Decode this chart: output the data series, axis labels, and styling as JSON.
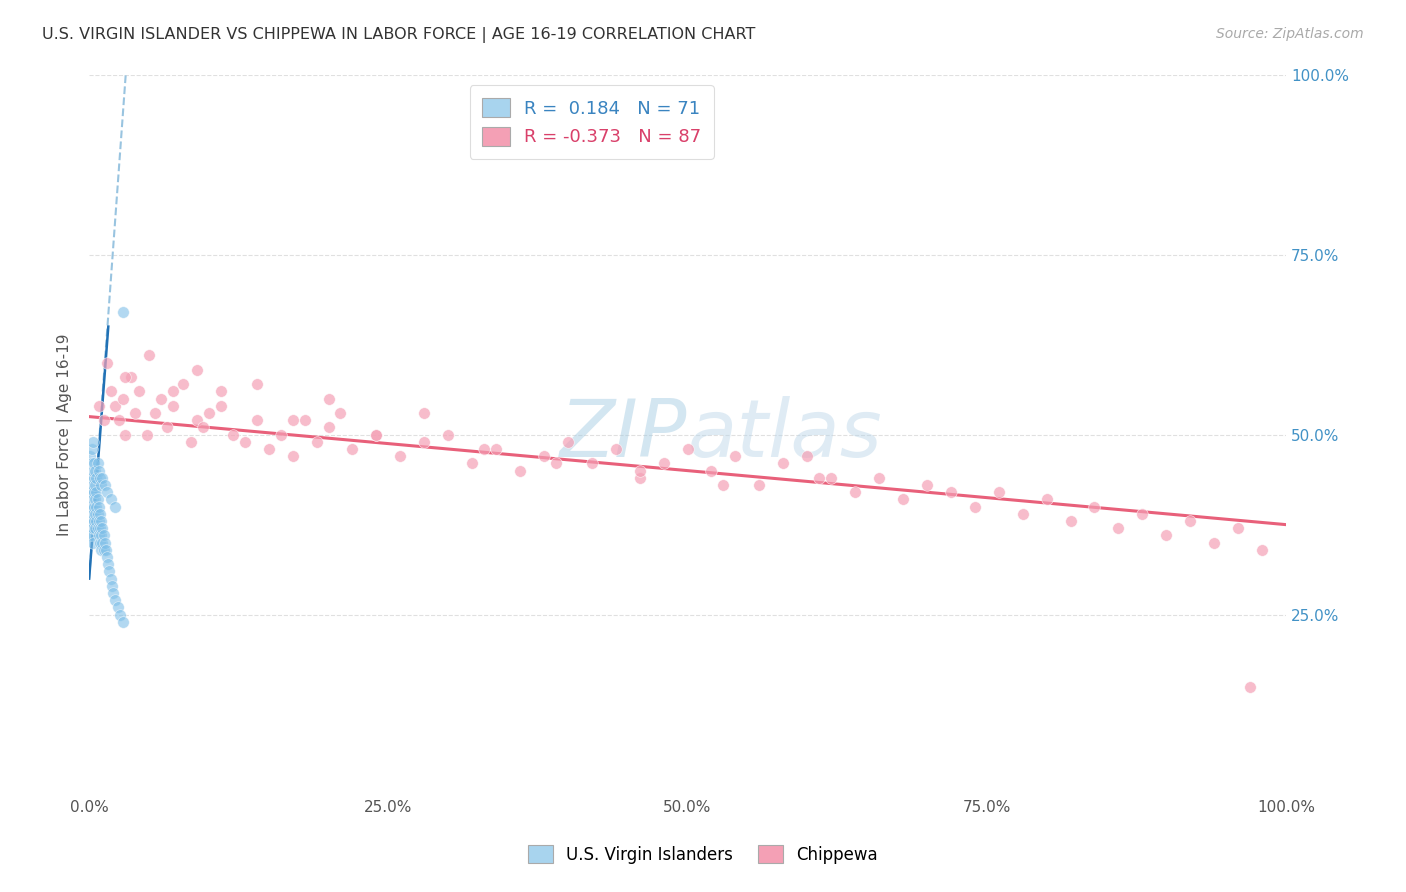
{
  "title": "U.S. VIRGIN ISLANDER VS CHIPPEWA IN LABOR FORCE | AGE 16-19 CORRELATION CHART",
  "source": "Source: ZipAtlas.com",
  "ylabel": "In Labor Force | Age 16-19",
  "xlim": [
    0.0,
    1.0
  ],
  "ylim": [
    0.0,
    1.0
  ],
  "xticks": [
    0.0,
    0.25,
    0.5,
    0.75,
    1.0
  ],
  "xtick_labels": [
    "0.0%",
    "25.0%",
    "50.0%",
    "75.0%",
    "100.0%"
  ],
  "right_ytick_labels": [
    "25.0%",
    "50.0%",
    "75.0%",
    "100.0%"
  ],
  "R_blue": 0.184,
  "N_blue": 71,
  "R_pink": -0.373,
  "N_pink": 87,
  "blue_color": "#7fbfe8",
  "pink_color": "#f4a0b5",
  "watermark_color": "#cde3f0",
  "background_color": "#ffffff",
  "grid_color": "#e0e0e0",
  "blue_scatter_x": [
    0.001,
    0.001,
    0.001,
    0.001,
    0.002,
    0.002,
    0.002,
    0.002,
    0.002,
    0.003,
    0.003,
    0.003,
    0.003,
    0.003,
    0.004,
    0.004,
    0.004,
    0.004,
    0.005,
    0.005,
    0.005,
    0.005,
    0.006,
    0.006,
    0.006,
    0.007,
    0.007,
    0.007,
    0.008,
    0.008,
    0.008,
    0.009,
    0.009,
    0.009,
    0.01,
    0.01,
    0.01,
    0.011,
    0.011,
    0.012,
    0.012,
    0.013,
    0.014,
    0.015,
    0.016,
    0.017,
    0.018,
    0.019,
    0.02,
    0.022,
    0.024,
    0.026,
    0.028,
    0.001,
    0.002,
    0.002,
    0.003,
    0.003,
    0.004,
    0.005,
    0.006,
    0.007,
    0.008,
    0.009,
    0.01,
    0.011,
    0.013,
    0.015,
    0.018,
    0.022,
    0.028
  ],
  "blue_scatter_y": [
    0.42,
    0.4,
    0.38,
    0.36,
    0.44,
    0.42,
    0.4,
    0.38,
    0.36,
    0.43,
    0.41,
    0.39,
    0.37,
    0.35,
    0.44,
    0.42,
    0.4,
    0.38,
    0.43,
    0.41,
    0.39,
    0.37,
    0.42,
    0.4,
    0.38,
    0.41,
    0.39,
    0.37,
    0.4,
    0.38,
    0.36,
    0.39,
    0.37,
    0.35,
    0.38,
    0.36,
    0.34,
    0.37,
    0.35,
    0.36,
    0.34,
    0.35,
    0.34,
    0.33,
    0.32,
    0.31,
    0.3,
    0.29,
    0.28,
    0.27,
    0.26,
    0.25,
    0.24,
    0.47,
    0.46,
    0.48,
    0.45,
    0.49,
    0.46,
    0.45,
    0.44,
    0.46,
    0.45,
    0.44,
    0.43,
    0.44,
    0.43,
    0.42,
    0.41,
    0.4,
    0.67
  ],
  "pink_scatter_x": [
    0.008,
    0.012,
    0.018,
    0.022,
    0.025,
    0.028,
    0.03,
    0.035,
    0.038,
    0.042,
    0.048,
    0.055,
    0.06,
    0.065,
    0.07,
    0.078,
    0.085,
    0.09,
    0.095,
    0.1,
    0.11,
    0.12,
    0.13,
    0.14,
    0.15,
    0.16,
    0.17,
    0.18,
    0.19,
    0.2,
    0.21,
    0.22,
    0.24,
    0.26,
    0.28,
    0.3,
    0.32,
    0.34,
    0.36,
    0.38,
    0.4,
    0.42,
    0.44,
    0.46,
    0.48,
    0.5,
    0.52,
    0.54,
    0.56,
    0.58,
    0.6,
    0.62,
    0.64,
    0.66,
    0.68,
    0.7,
    0.72,
    0.74,
    0.76,
    0.78,
    0.8,
    0.82,
    0.84,
    0.86,
    0.88,
    0.9,
    0.92,
    0.94,
    0.96,
    0.98,
    0.015,
    0.03,
    0.05,
    0.07,
    0.09,
    0.11,
    0.14,
    0.17,
    0.2,
    0.24,
    0.28,
    0.33,
    0.39,
    0.46,
    0.53,
    0.61,
    0.97
  ],
  "pink_scatter_y": [
    0.54,
    0.52,
    0.56,
    0.54,
    0.52,
    0.55,
    0.5,
    0.58,
    0.53,
    0.56,
    0.5,
    0.53,
    0.55,
    0.51,
    0.54,
    0.57,
    0.49,
    0.52,
    0.51,
    0.53,
    0.56,
    0.5,
    0.49,
    0.52,
    0.48,
    0.5,
    0.47,
    0.52,
    0.49,
    0.51,
    0.53,
    0.48,
    0.5,
    0.47,
    0.49,
    0.5,
    0.46,
    0.48,
    0.45,
    0.47,
    0.49,
    0.46,
    0.48,
    0.44,
    0.46,
    0.48,
    0.45,
    0.47,
    0.43,
    0.46,
    0.47,
    0.44,
    0.42,
    0.44,
    0.41,
    0.43,
    0.42,
    0.4,
    0.42,
    0.39,
    0.41,
    0.38,
    0.4,
    0.37,
    0.39,
    0.36,
    0.38,
    0.35,
    0.37,
    0.34,
    0.6,
    0.58,
    0.61,
    0.56,
    0.59,
    0.54,
    0.57,
    0.52,
    0.55,
    0.5,
    0.53,
    0.48,
    0.46,
    0.45,
    0.43,
    0.44,
    0.15
  ],
  "pink_trend_x0": 0.0,
  "pink_trend_x1": 1.0,
  "pink_trend_y0": 0.525,
  "pink_trend_y1": 0.375,
  "blue_trend_x0": 0.0,
  "blue_trend_x1": 0.031,
  "blue_trend_y0": 0.3,
  "blue_trend_y1": 1.01
}
